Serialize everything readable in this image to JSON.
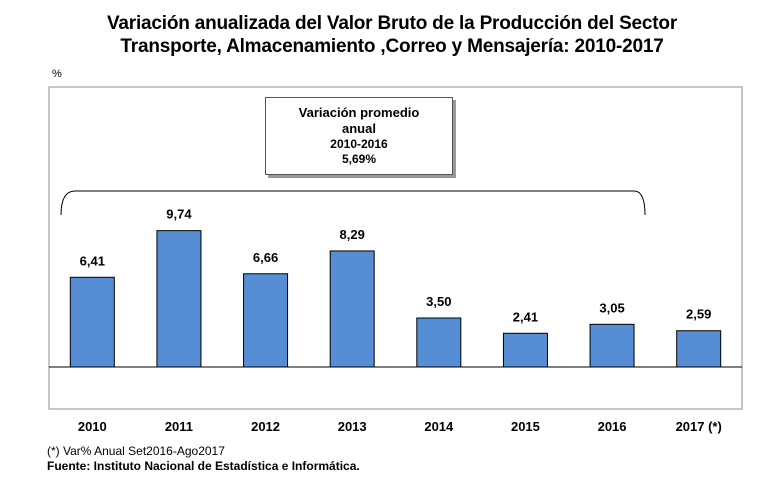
{
  "title_line1": "Variación anualizada del Valor Bruto de la Producción del Sector",
  "title_line2": "Transporte, Almacenamiento ,Correo y Mensajería: 2010-2017",
  "y_unit": "%",
  "callout": {
    "line1": "Variación promedio",
    "line2": "anual",
    "line3": "2010-2016",
    "line4": "5,69%"
  },
  "footnote": "(*) Var% Anual Set2016-Ago2017",
  "source": "Fuente: Instituto Nacional de Estadística e  Informática.",
  "colors": {
    "bar": "#558ed5",
    "bar_border": "#000000",
    "frame": "#8c8c8c"
  },
  "chart_data": {
    "type": "bar",
    "categories": [
      "2010",
      "2011",
      "2012",
      "2013",
      "2014",
      "2015",
      "2016",
      "2017 (*)"
    ],
    "values": [
      6.41,
      9.74,
      6.66,
      8.29,
      3.5,
      2.41,
      3.05,
      2.59
    ],
    "value_labels": [
      "6,41",
      "9,74",
      "6,66",
      "8,29",
      "3,50",
      "2,41",
      "3,05",
      "2,59"
    ],
    "ylabel": "%",
    "ylim": [
      -2,
      13
    ],
    "grid": false
  }
}
